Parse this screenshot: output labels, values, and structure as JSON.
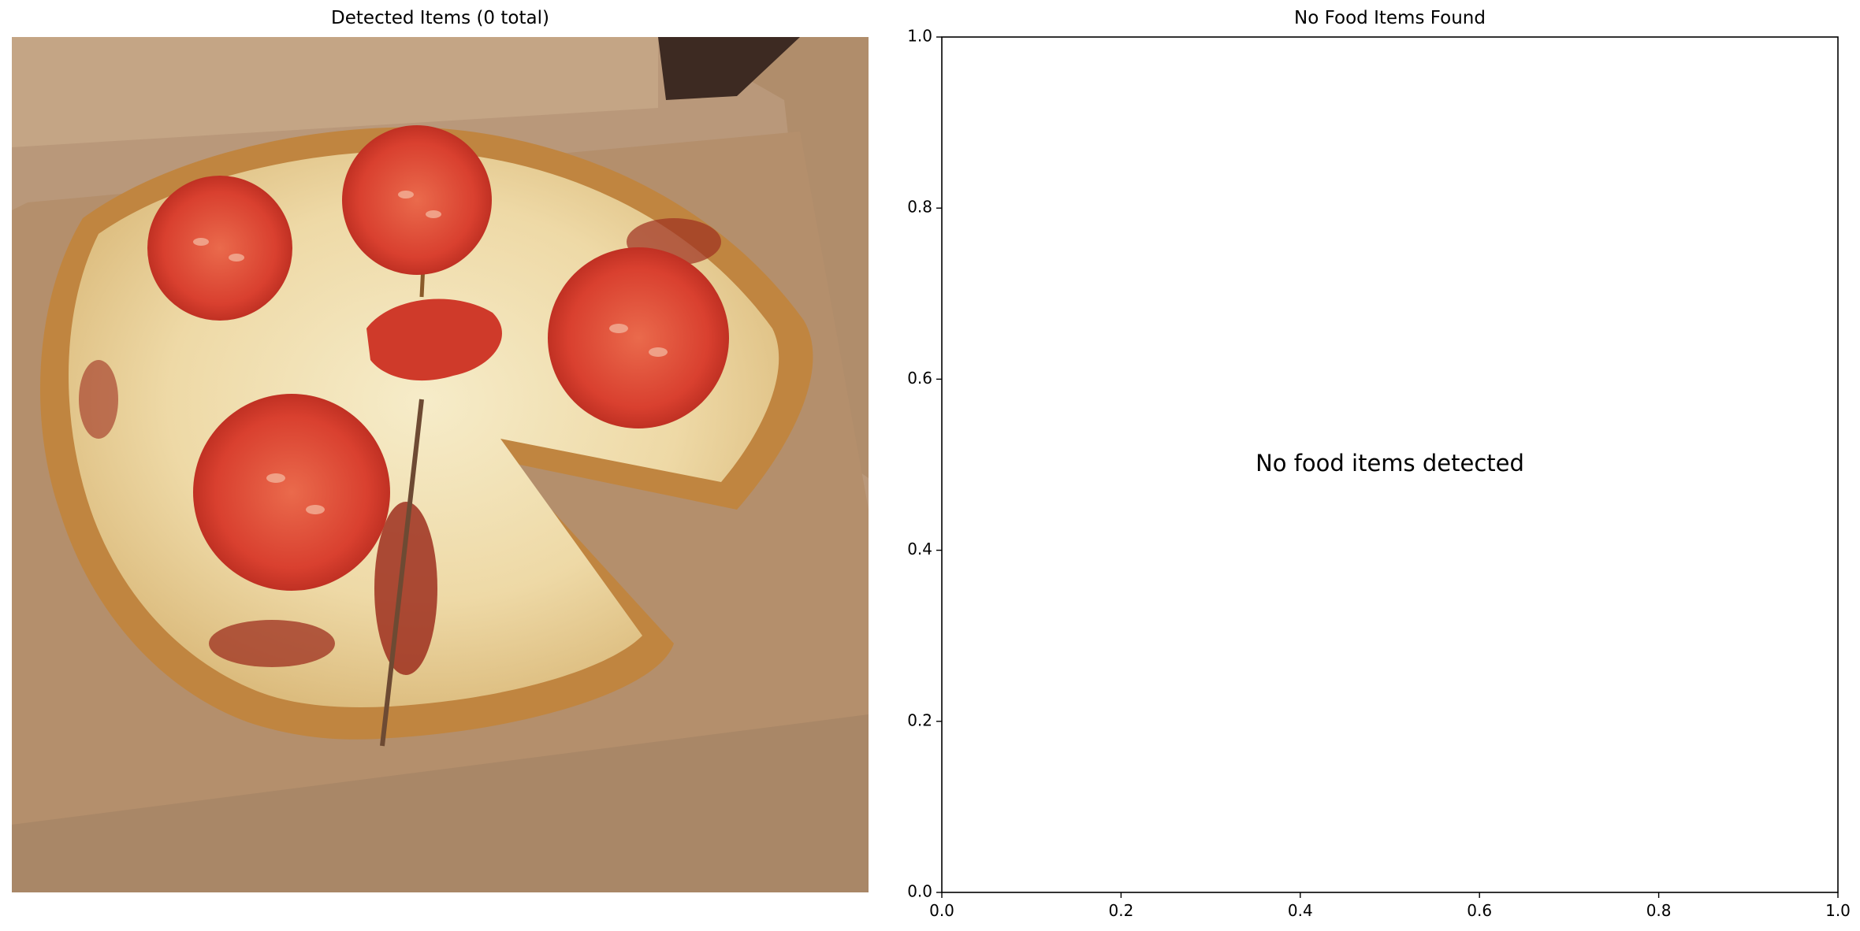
{
  "figure": {
    "left_panel": {
      "title": "Detected Items (0 total)",
      "image_description": "pizza"
    },
    "right_panel": {
      "title": "No Food Items Found",
      "message": "No food items detected"
    }
  },
  "chart_data": [
    {
      "type": "scatter",
      "title": "No Food Items Found",
      "xlabel": "",
      "ylabel": "",
      "xlim": [
        0.0,
        1.0
      ],
      "ylim": [
        0.0,
        1.0
      ],
      "xticks": [
        "0.0",
        "0.2",
        "0.4",
        "0.6",
        "0.8",
        "1.0"
      ],
      "yticks": [
        "0.0",
        "0.2",
        "0.4",
        "0.6",
        "0.8",
        "1.0"
      ],
      "series": [],
      "annotations": [
        {
          "text": "No food items detected",
          "x": 0.5,
          "y": 0.5
        }
      ],
      "grid": false
    }
  ],
  "colors": {
    "box": "#c7a47f",
    "box_dark": "#a9835f",
    "crust": "#c1883f",
    "cheese": "#f0e2b8",
    "sauce": "#9e2f1f",
    "tomato": "#d9402f"
  }
}
